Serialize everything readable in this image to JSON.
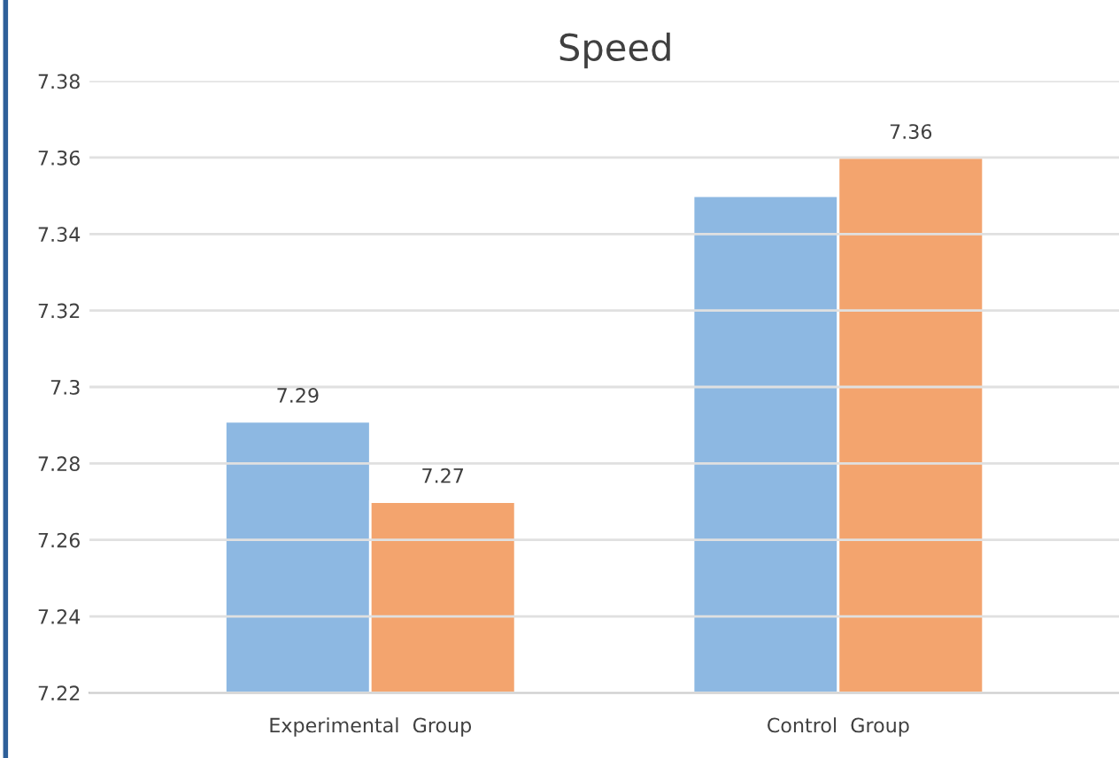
{
  "chart_data": {
    "type": "bar",
    "title": "Speed",
    "categories": [
      "Experimental  Group",
      "Control  Group"
    ],
    "series": [
      {
        "color": "#8db8e2",
        "values": [
          7.291,
          7.35
        ],
        "value_labels": [
          "7.29",
          null
        ]
      },
      {
        "color": "#f3a46e",
        "values": [
          7.27,
          7.36
        ],
        "value_labels": [
          "7.27",
          "7.36"
        ]
      }
    ],
    "ylim": [
      7.22,
      7.38
    ],
    "yticks": [
      7.22,
      7.24,
      7.26,
      7.28,
      7.3,
      7.32,
      7.34,
      7.36,
      7.38
    ],
    "grid": "y",
    "legend": false
  }
}
